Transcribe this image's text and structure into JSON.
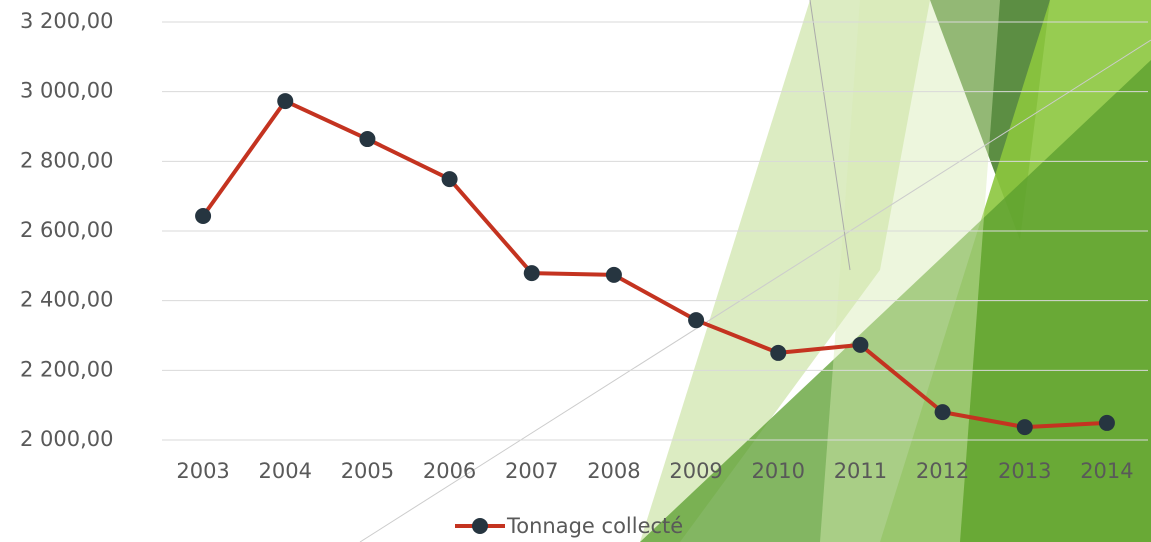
{
  "chart_data": {
    "type": "line",
    "categories": [
      "2003",
      "2004",
      "2005",
      "2006",
      "2007",
      "2008",
      "2009",
      "2010",
      "2011",
      "2012",
      "2013",
      "2014"
    ],
    "series": [
      {
        "name": "Tonnage collecté",
        "color": "#c43320",
        "marker_color": "#263540",
        "values": [
          2643,
          2973,
          2864,
          2749,
          2479,
          2474,
          2344,
          2250,
          2273,
          2080,
          2037,
          2049
        ]
      }
    ],
    "ylim": [
      2000,
      3200
    ],
    "yticks": [
      {
        "value": 2000,
        "label": "2 000,00"
      },
      {
        "value": 2200,
        "label": "2 200,00"
      },
      {
        "value": 2400,
        "label": "2 400,00"
      },
      {
        "value": 2600,
        "label": "2 600,00"
      },
      {
        "value": 2800,
        "label": "2 800,00"
      },
      {
        "value": 3000,
        "label": "3 000,00"
      },
      {
        "value": 3200,
        "label": "3 200,00"
      }
    ],
    "grid": true,
    "legend": "bottom"
  }
}
